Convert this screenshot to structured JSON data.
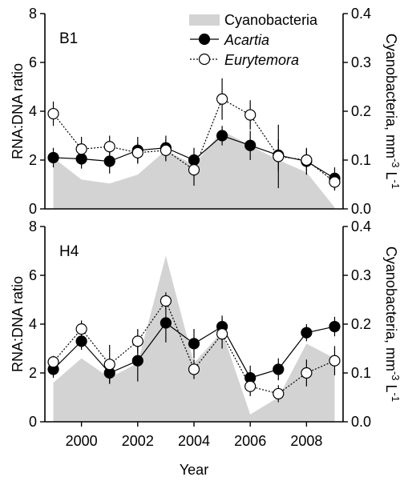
{
  "chart_data": [
    {
      "type": "line",
      "panel_label": "B1",
      "xlabel": "",
      "ylabel": "RNA:DNA ratio",
      "y2label": "Cyanobacteria, mm-3 L-1",
      "xlim": [
        1998.7,
        2009.3
      ],
      "ylim": [
        0,
        8
      ],
      "y2lim": [
        0,
        0.4
      ],
      "yticks": [
        "0",
        "2",
        "4",
        "6",
        "8"
      ],
      "y2ticks": [
        "0.0",
        "0.1",
        "0.2",
        "0.3",
        "0.4"
      ],
      "area": {
        "name": "Cyanobacteria",
        "color": "#d3d3d3",
        "x": [
          1999,
          2000,
          2001,
          2002,
          2003,
          2004,
          2005,
          2006,
          2007,
          2008,
          2009
        ],
        "values": [
          0.105,
          0.06,
          0.052,
          0.07,
          0.12,
          0.09,
          0.16,
          0.13,
          0.1,
          0.075,
          0.003
        ]
      },
      "series": [
        {
          "name": "Acartia",
          "marker": "filled",
          "line": "solid",
          "x": [
            1999,
            2000,
            2001,
            2002,
            2003,
            2004,
            2005,
            2006,
            2007,
            2008,
            2009
          ],
          "values": [
            2.1,
            2.05,
            1.95,
            2.4,
            2.5,
            2.0,
            3.0,
            2.6,
            2.2,
            1.95,
            1.25
          ],
          "err": [
            0.4,
            0.4,
            0.5,
            0.55,
            0.5,
            0.5,
            0.4,
            0.6,
            0.65,
            0.55,
            0.45
          ]
        },
        {
          "name": "Eurytemora",
          "marker": "open",
          "line": "dotted",
          "x": [
            1999,
            2000,
            2001,
            2002,
            2003,
            2004,
            2005,
            2006,
            2007,
            2008,
            2009
          ],
          "values": [
            3.9,
            2.45,
            2.55,
            2.3,
            2.4,
            1.6,
            4.5,
            3.85,
            2.15,
            2.0,
            1.1
          ],
          "err": [
            0.5,
            0.5,
            0.45,
            0.4,
            0.45,
            0.65,
            0.85,
            0.6,
            1.3,
            0.45,
            0.35
          ]
        }
      ],
      "legend": {
        "placement": "top-right",
        "items": [
          "Cyanobacteria",
          "Acartia",
          "Eurytemora"
        ]
      }
    },
    {
      "type": "line",
      "panel_label": "H4",
      "xlabel": "Year",
      "ylabel": "RNA:DNA ratio",
      "y2label": "Cyanobacteria, mm-3 L-1",
      "xlim": [
        1998.7,
        2009.3
      ],
      "ylim": [
        0,
        8
      ],
      "y2lim": [
        0,
        0.4
      ],
      "yticks": [
        "0",
        "2",
        "4",
        "6",
        "8"
      ],
      "y2ticks": [
        "0.0",
        "0.1",
        "0.2",
        "0.3",
        "0.4"
      ],
      "xticks": [
        2000,
        2002,
        2004,
        2006,
        2008
      ],
      "xticklabels": [
        "2000",
        "2002",
        "2004",
        "2006",
        "2008"
      ],
      "area": {
        "name": "Cyanobacteria",
        "color": "#d3d3d3",
        "x": [
          1999,
          2000,
          2001,
          2002,
          2003,
          2004,
          2005,
          2006,
          2007,
          2008,
          2009
        ],
        "values": [
          0.08,
          0.13,
          0.09,
          0.12,
          0.34,
          0.12,
          0.185,
          0.015,
          0.05,
          0.16,
          0.13
        ]
      },
      "series": [
        {
          "name": "Acartia",
          "marker": "filled",
          "line": "solid",
          "x": [
            1999,
            2000,
            2001,
            2002,
            2003,
            2004,
            2005,
            2006,
            2007,
            2008,
            2009
          ],
          "values": [
            2.15,
            3.3,
            2.0,
            2.5,
            4.05,
            3.2,
            3.9,
            1.8,
            2.15,
            3.65,
            3.9
          ],
          "err": [
            0.35,
            0.35,
            0.4,
            0.85,
            0.8,
            0.6,
            0.45,
            0.5,
            0.45,
            0.35,
            0.4
          ]
        },
        {
          "name": "Eurytemora",
          "marker": "open",
          "line": "dotted",
          "x": [
            1999,
            2000,
            2001,
            2002,
            2003,
            2004,
            2005,
            2006,
            2007,
            2008,
            2009
          ],
          "values": [
            2.45,
            3.8,
            2.35,
            3.3,
            4.95,
            2.15,
            3.6,
            1.45,
            1.15,
            2.0,
            2.5
          ],
          "err": [
            0.25,
            0.35,
            0.8,
            0.5,
            0.35,
            0.4,
            0.6,
            0.4,
            0.35,
            0.55,
            0.6
          ]
        }
      ]
    }
  ]
}
